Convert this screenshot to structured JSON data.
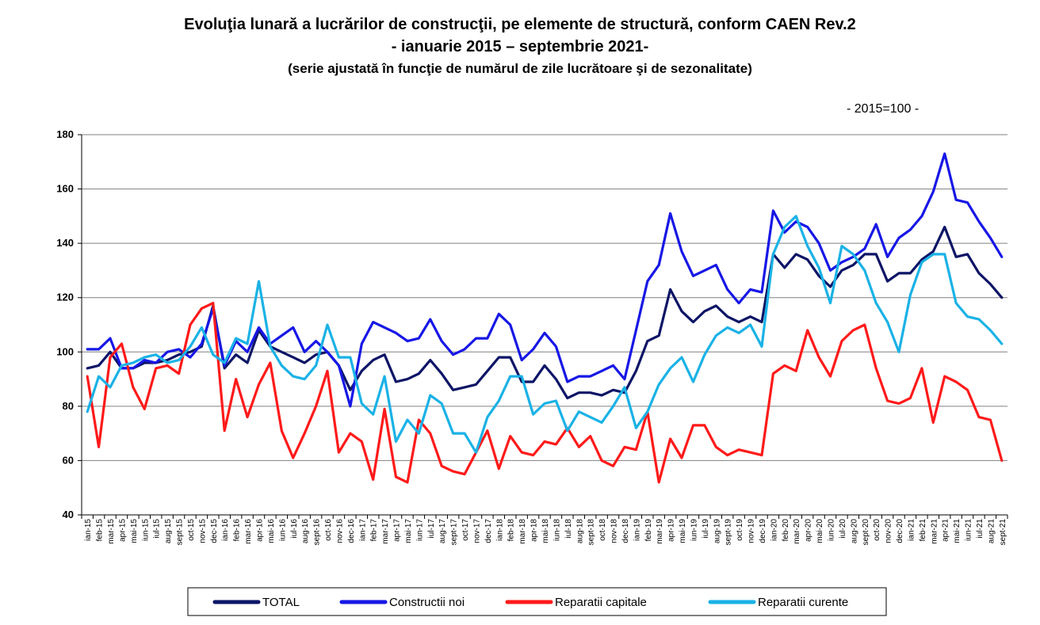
{
  "chart_data": {
    "type": "line",
    "title": "Evoluţia lunară a lucrărilor de construcţii, pe elemente de structură, conform CAEN Rev.2",
    "subtitle": "- ianuarie 2015 – septembrie 2021-",
    "note": "(serie ajustată în funcţie de numărul de zile lucrătoare şi de sezonalitate)",
    "unit_label": "- 2015=100 -",
    "ylim": [
      40,
      180
    ],
    "yticks": [
      40,
      60,
      80,
      100,
      120,
      140,
      160,
      180
    ],
    "grid": "horizontal",
    "legend_position": "bottom",
    "x": [
      "ian-15",
      "feb-15",
      "mar-15",
      "apr-15",
      "mai-15",
      "iun-15",
      "iul-15",
      "aug-15",
      "sept-15",
      "oct-15",
      "nov-15",
      "dec-15",
      "ian-16",
      "feb-16",
      "mar-16",
      "apr-16",
      "mai-16",
      "iun-16",
      "iul-16",
      "aug-16",
      "sept-16",
      "oct-16",
      "nov-16",
      "dec-16",
      "ian-17",
      "feb-17",
      "mar-17",
      "apr-17",
      "mai-17",
      "iun-17",
      "iul-17",
      "aug-17",
      "sept-17",
      "oct-17",
      "nov-17",
      "dec-17",
      "ian-18",
      "feb-18",
      "mar-18",
      "apr-18",
      "mai-18",
      "iun-18",
      "iul-18",
      "aug-18",
      "sept-18",
      "oct-18",
      "nov-18",
      "dec-18",
      "ian-19",
      "feb-19",
      "mar-19",
      "apr-19",
      "mai-19",
      "iun-19",
      "iul-19",
      "aug-19",
      "sept-19",
      "oct-19",
      "nov-19",
      "dec-19",
      "ian-20",
      "feb-20",
      "mar-20",
      "apr-20",
      "mai-20",
      "iun-20",
      "iul-20",
      "aug-20",
      "sept-20",
      "oct-20",
      "nov-20",
      "dec-20",
      "ian-21",
      "feb-21",
      "mar-21",
      "apr-21",
      "mai-21",
      "iun-21",
      "iul-21",
      "aug-21",
      "sept-21"
    ],
    "series": [
      {
        "name": "TOTAL",
        "color": "#0d1566",
        "values": [
          94,
          95,
          100,
          94,
          94,
          96,
          96,
          97,
          99,
          100,
          102,
          117,
          94,
          99,
          96,
          108,
          102,
          100,
          98,
          96,
          99,
          100,
          95,
          86,
          93,
          97,
          99,
          89,
          90,
          92,
          97,
          92,
          86,
          87,
          88,
          93,
          98,
          98,
          89,
          89,
          95,
          90,
          83,
          85,
          85,
          84,
          86,
          85,
          93,
          104,
          106,
          123,
          115,
          111,
          115,
          117,
          113,
          111,
          113,
          111,
          136,
          131,
          136,
          134,
          128,
          124,
          130,
          132,
          136,
          136,
          126,
          129,
          129,
          134,
          137,
          146,
          135,
          136,
          129,
          125,
          120
        ]
      },
      {
        "name": "Constructii noi",
        "color": "#1717e6",
        "values": [
          101,
          101,
          105,
          94,
          94,
          97,
          96,
          100,
          101,
          98,
          103,
          116,
          95,
          104,
          100,
          109,
          103,
          106,
          109,
          100,
          104,
          100,
          95,
          80,
          103,
          111,
          109,
          107,
          104,
          105,
          112,
          104,
          99,
          101,
          105,
          105,
          114,
          110,
          97,
          101,
          107,
          102,
          89,
          91,
          91,
          93,
          95,
          90,
          108,
          126,
          132,
          151,
          137,
          128,
          130,
          132,
          123,
          118,
          123,
          122,
          152,
          144,
          148,
          146,
          140,
          130,
          133,
          135,
          138,
          147,
          135,
          142,
          145,
          150,
          159,
          173,
          156,
          155,
          148,
          142,
          135
        ]
      },
      {
        "name": "Reparatii capitale",
        "color": "#ff1a1a",
        "values": [
          91,
          65,
          98,
          103,
          87,
          79,
          94,
          95,
          92,
          110,
          116,
          118,
          71,
          90,
          76,
          88,
          96,
          71,
          61,
          70,
          80,
          93,
          63,
          70,
          67,
          53,
          79,
          54,
          52,
          75,
          70,
          58,
          56,
          55,
          63,
          71,
          57,
          69,
          63,
          62,
          67,
          66,
          72,
          65,
          69,
          60,
          58,
          65,
          64,
          78,
          52,
          68,
          61,
          73,
          73,
          65,
          62,
          64,
          63,
          62,
          92,
          95,
          93,
          108,
          98,
          91,
          104,
          108,
          110,
          94,
          82,
          81,
          83,
          94,
          74,
          91,
          89,
          86,
          76,
          75,
          60
        ]
      },
      {
        "name": "Reparatii curente",
        "color": "#1ab2e6",
        "values": [
          78,
          91,
          87,
          95,
          96,
          98,
          99,
          96,
          97,
          102,
          109,
          99,
          96,
          105,
          103,
          126,
          102,
          95,
          91,
          90,
          95,
          110,
          98,
          98,
          81,
          77,
          91,
          67,
          75,
          70,
          84,
          81,
          70,
          70,
          63,
          76,
          82,
          91,
          91,
          77,
          81,
          82,
          71,
          78,
          76,
          74,
          80,
          87,
          72,
          78,
          88,
          94,
          98,
          89,
          99,
          106,
          109,
          107,
          110,
          102,
          136,
          146,
          150,
          139,
          131,
          118,
          139,
          136,
          130,
          118,
          111,
          100,
          121,
          133,
          136,
          136,
          118,
          113,
          112,
          108,
          103
        ]
      }
    ]
  }
}
